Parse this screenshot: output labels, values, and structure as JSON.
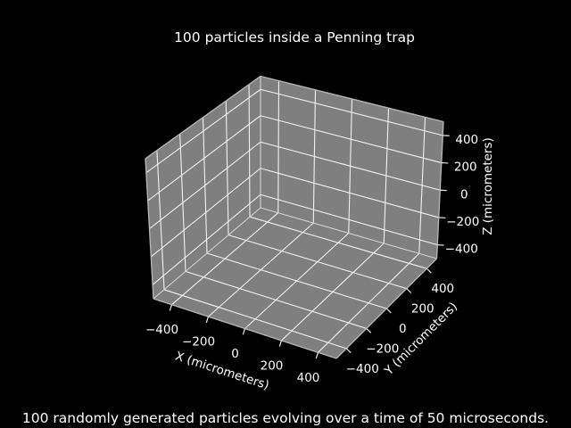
{
  "caption": "100 randomly generated particles evolving over a time of 50 microseconds.",
  "chart_data": {
    "type": "scatter",
    "projection": "3d",
    "title": "100 particles inside a Penning trap",
    "xlabel": "X (micrometers)",
    "ylabel": "Y (micrometers)",
    "zlabel": "Z (micrometers)",
    "xlim": [
      -500,
      500
    ],
    "ylim": [
      -500,
      500
    ],
    "zlim": [
      -500,
      500
    ],
    "xticks": [
      -400,
      -200,
      0,
      200,
      400
    ],
    "yticks": [
      -400,
      -200,
      0,
      200,
      400
    ],
    "zticks": [
      -400,
      -200,
      0,
      200,
      400
    ],
    "grid": true,
    "legend": false,
    "points": []
  },
  "colors": {
    "background": "#000000",
    "text": "#ffffff",
    "pane": "#7f7f7f",
    "grid": "#f2f2f2",
    "outer_edge": "#b3b3b3",
    "inner_edge": "#d2d2d2",
    "tick": "#e8e8e8"
  }
}
